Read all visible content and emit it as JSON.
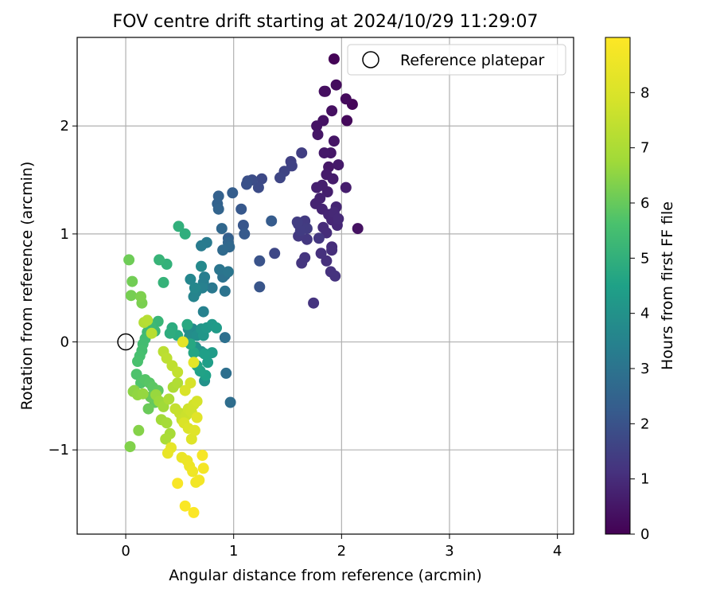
{
  "chart_data": {
    "type": "scatter",
    "title": "FOV centre drift starting at 2024/10/29 11:29:07",
    "xlabel": "Angular distance from reference (arcmin)",
    "ylabel": "Rotation from reference (arcmin)",
    "xlim": [
      -0.45,
      4.15
    ],
    "ylim": [
      -1.78,
      2.82
    ],
    "xticks": [
      0,
      1,
      2,
      3,
      4
    ],
    "xtick_labels": [
      "0",
      "1",
      "2",
      "3",
      "4"
    ],
    "yticks": [
      -1,
      0,
      1,
      2
    ],
    "ytick_labels": [
      "−1",
      "0",
      "1",
      "2"
    ],
    "grid": true,
    "legend": {
      "placement": "top-right",
      "entries": [
        "Reference platepar"
      ]
    },
    "colorbar": {
      "label": "Hours from first FF file",
      "colormap": "viridis",
      "range": [
        0,
        9
      ],
      "ticks": [
        0,
        1,
        2,
        3,
        4,
        5,
        6,
        7,
        8
      ],
      "tick_labels": [
        "0",
        "1",
        "2",
        "3",
        "4",
        "5",
        "6",
        "7",
        "8"
      ]
    },
    "reference_point": {
      "name": "Reference platepar",
      "x": 0,
      "y": 0
    },
    "series": [
      {
        "columns": [
          "x",
          "y",
          "hours"
        ],
        "points": [
          [
            1.93,
            2.62,
            0.05
          ],
          [
            2.1,
            2.2,
            0.1
          ],
          [
            2.05,
            2.05,
            0.15
          ],
          [
            2.04,
            2.25,
            0.2
          ],
          [
            1.95,
            2.38,
            0.25
          ],
          [
            1.85,
            2.32,
            0.3
          ],
          [
            1.84,
            2.32,
            0.32
          ],
          [
            1.91,
            2.14,
            0.35
          ],
          [
            2.15,
            1.05,
            0.38
          ],
          [
            1.83,
            2.05,
            0.4
          ],
          [
            1.77,
            2.0,
            0.42
          ],
          [
            1.93,
            1.86,
            0.45
          ],
          [
            1.78,
            1.92,
            0.48
          ],
          [
            1.9,
            1.75,
            0.5
          ],
          [
            1.88,
            1.62,
            0.52
          ],
          [
            1.84,
            1.75,
            0.55
          ],
          [
            1.97,
            1.64,
            0.58
          ],
          [
            1.86,
            1.55,
            0.6
          ],
          [
            1.92,
            1.51,
            0.62
          ],
          [
            2.04,
            1.43,
            0.65
          ],
          [
            1.87,
            1.39,
            0.68
          ],
          [
            1.82,
            1.45,
            0.7
          ],
          [
            1.77,
            1.43,
            0.72
          ],
          [
            1.8,
            1.33,
            0.75
          ],
          [
            1.76,
            1.28,
            0.78
          ],
          [
            1.82,
            1.23,
            0.8
          ],
          [
            1.95,
            1.25,
            0.82
          ],
          [
            1.88,
            1.18,
            0.85
          ],
          [
            1.91,
            1.13,
            0.88
          ],
          [
            1.96,
            1.08,
            0.9
          ],
          [
            1.93,
            1.2,
            0.92
          ],
          [
            1.97,
            1.14,
            0.95
          ],
          [
            1.83,
            1.06,
            0.98
          ],
          [
            1.86,
            1.01,
            1.0
          ],
          [
            1.91,
            0.88,
            1.02
          ],
          [
            1.91,
            0.85,
            1.05
          ],
          [
            1.86,
            0.75,
            1.08
          ],
          [
            1.81,
            0.82,
            1.1
          ],
          [
            1.9,
            0.65,
            1.12
          ],
          [
            1.94,
            0.61,
            1.15
          ],
          [
            1.74,
            0.36,
            1.18
          ],
          [
            1.66,
            0.78,
            1.2
          ],
          [
            1.63,
            0.73,
            1.22
          ],
          [
            1.79,
            0.96,
            1.25
          ],
          [
            1.68,
            0.95,
            1.28
          ],
          [
            1.6,
            0.98,
            1.3
          ],
          [
            1.6,
            1.09,
            1.32
          ],
          [
            1.66,
            1.12,
            1.35
          ],
          [
            1.68,
            1.05,
            1.38
          ],
          [
            1.62,
            1.03,
            1.4
          ],
          [
            1.59,
            1.11,
            1.42
          ],
          [
            1.63,
            1.75,
            1.45
          ],
          [
            1.53,
            1.67,
            1.5
          ],
          [
            1.54,
            1.63,
            1.55
          ],
          [
            1.47,
            1.58,
            1.6
          ],
          [
            1.43,
            1.52,
            1.65
          ],
          [
            1.38,
            0.82,
            1.7
          ],
          [
            1.26,
            1.51,
            1.75
          ],
          [
            1.23,
            1.43,
            1.8
          ],
          [
            1.17,
            1.5,
            1.85
          ],
          [
            1.13,
            1.49,
            1.9
          ],
          [
            1.12,
            1.46,
            1.95
          ],
          [
            1.24,
            0.75,
            2.0
          ],
          [
            1.24,
            0.51,
            2.05
          ],
          [
            1.09,
            1.08,
            2.1
          ],
          [
            1.07,
            1.23,
            2.15
          ],
          [
            1.1,
            1.0,
            2.2
          ],
          [
            1.35,
            1.12,
            2.25
          ],
          [
            0.99,
            1.38,
            2.3
          ],
          [
            0.95,
            0.96,
            2.35
          ],
          [
            0.86,
            1.35,
            2.4
          ],
          [
            0.85,
            1.28,
            2.45
          ],
          [
            0.86,
            1.23,
            2.5
          ],
          [
            0.95,
            0.92,
            2.55
          ],
          [
            0.89,
            1.05,
            2.6
          ],
          [
            0.96,
            0.88,
            2.65
          ],
          [
            0.9,
            0.85,
            2.7
          ],
          [
            0.92,
            0.62,
            2.75
          ],
          [
            0.97,
            -0.56,
            2.8
          ],
          [
            0.93,
            -0.29,
            2.85
          ],
          [
            0.92,
            0.04,
            2.9
          ],
          [
            0.9,
            0.6,
            2.95
          ],
          [
            0.92,
            0.47,
            3.0
          ],
          [
            0.87,
            0.67,
            3.05
          ],
          [
            0.95,
            0.65,
            3.1
          ],
          [
            0.8,
            0.5,
            3.15
          ],
          [
            0.75,
            0.92,
            3.2
          ],
          [
            0.7,
            0.89,
            3.25
          ],
          [
            0.72,
            0.55,
            3.3
          ],
          [
            0.73,
            0.6,
            3.35
          ],
          [
            0.71,
            0.5,
            3.4
          ],
          [
            0.72,
            0.28,
            3.45
          ],
          [
            0.65,
            0.46,
            3.5
          ],
          [
            0.63,
            0.42,
            3.55
          ],
          [
            0.6,
            0.58,
            3.6
          ],
          [
            0.64,
            0.5,
            3.65
          ],
          [
            0.7,
            0.7,
            3.7
          ],
          [
            0.62,
            0.12,
            3.75
          ],
          [
            0.58,
            0.12,
            3.8
          ],
          [
            0.59,
            0.05,
            3.85
          ],
          [
            0.66,
            0.06,
            3.9
          ],
          [
            0.7,
            -0.09,
            3.95
          ],
          [
            0.73,
            -0.36,
            4.0
          ],
          [
            0.65,
            -0.05,
            4.05
          ],
          [
            0.7,
            0.12,
            4.1
          ],
          [
            0.72,
            0.06,
            4.15
          ],
          [
            0.75,
            0.13,
            4.2
          ],
          [
            0.8,
            0.16,
            4.25
          ],
          [
            0.84,
            0.13,
            4.3
          ],
          [
            0.8,
            -0.1,
            4.35
          ],
          [
            0.76,
            -0.19,
            4.4
          ],
          [
            0.73,
            -0.11,
            4.45
          ],
          [
            0.74,
            -0.31,
            4.5
          ],
          [
            0.69,
            -0.27,
            4.55
          ],
          [
            0.66,
            -0.22,
            4.6
          ],
          [
            0.63,
            -0.1,
            4.65
          ],
          [
            0.6,
            -0.02,
            4.7
          ],
          [
            0.57,
            0.16,
            4.75
          ],
          [
            0.48,
            0.06,
            4.8
          ],
          [
            0.43,
            0.13,
            4.85
          ],
          [
            0.41,
            0.08,
            4.9
          ],
          [
            0.55,
            1.0,
            4.95
          ],
          [
            0.49,
            1.07,
            5.0
          ],
          [
            0.38,
            0.72,
            5.05
          ],
          [
            0.35,
            0.55,
            5.1
          ],
          [
            0.31,
            0.76,
            5.15
          ],
          [
            0.3,
            0.19,
            5.2
          ],
          [
            0.27,
            0.1,
            5.25
          ],
          [
            0.23,
            0.15,
            5.3
          ],
          [
            0.2,
            0.09,
            5.35
          ],
          [
            0.18,
            0.03,
            5.4
          ],
          [
            0.16,
            -0.02,
            5.45
          ],
          [
            0.15,
            -0.08,
            5.5
          ],
          [
            0.13,
            -0.13,
            5.55
          ],
          [
            0.11,
            -0.18,
            5.6
          ],
          [
            0.1,
            -0.3,
            5.65
          ],
          [
            0.14,
            -0.38,
            5.7
          ],
          [
            0.18,
            -0.35,
            5.75
          ],
          [
            0.22,
            -0.38,
            5.8
          ],
          [
            0.25,
            -0.42,
            5.85
          ],
          [
            0.3,
            -0.45,
            5.9
          ],
          [
            0.27,
            -0.56,
            5.95
          ],
          [
            0.23,
            -0.51,
            6.0
          ],
          [
            0.21,
            -0.62,
            6.05
          ],
          [
            0.03,
            0.76,
            6.1
          ],
          [
            0.06,
            0.56,
            6.15
          ],
          [
            0.05,
            0.43,
            6.2
          ],
          [
            0.15,
            0.36,
            6.25
          ],
          [
            0.14,
            0.42,
            6.3
          ],
          [
            0.04,
            -0.97,
            6.35
          ],
          [
            0.12,
            -0.82,
            6.4
          ],
          [
            0.08,
            -0.45,
            6.45
          ],
          [
            0.07,
            -0.46,
            6.5
          ],
          [
            0.11,
            -0.49,
            6.55
          ],
          [
            0.16,
            -0.48,
            6.6
          ],
          [
            0.28,
            -0.49,
            6.65
          ],
          [
            0.31,
            -0.55,
            6.7
          ],
          [
            0.35,
            -0.6,
            6.75
          ],
          [
            0.33,
            -0.72,
            6.8
          ],
          [
            0.38,
            -0.75,
            6.85
          ],
          [
            0.41,
            -0.85,
            6.9
          ],
          [
            0.37,
            -0.9,
            6.95
          ],
          [
            0.4,
            -0.53,
            7.0
          ],
          [
            0.44,
            -0.42,
            7.05
          ],
          [
            0.48,
            -0.38,
            7.1
          ],
          [
            0.17,
            0.18,
            7.15
          ],
          [
            0.2,
            0.2,
            7.2
          ],
          [
            0.24,
            0.08,
            7.25
          ],
          [
            0.35,
            -0.09,
            7.3
          ],
          [
            0.38,
            -0.15,
            7.35
          ],
          [
            0.43,
            -0.22,
            7.4
          ],
          [
            0.48,
            -0.28,
            7.45
          ],
          [
            0.46,
            -0.62,
            7.5
          ],
          [
            0.5,
            -0.66,
            7.55
          ],
          [
            0.52,
            -0.72,
            7.6
          ],
          [
            0.56,
            -0.68,
            7.65
          ],
          [
            0.58,
            -0.62,
            7.7
          ],
          [
            0.61,
            -0.65,
            7.75
          ],
          [
            0.63,
            -0.58,
            7.8
          ],
          [
            0.66,
            -0.55,
            7.85
          ],
          [
            0.6,
            -0.38,
            7.9
          ],
          [
            0.55,
            -0.45,
            7.95
          ],
          [
            0.54,
            -0.75,
            8.0
          ],
          [
            0.58,
            -0.8,
            8.05
          ],
          [
            0.61,
            -0.9,
            8.1
          ],
          [
            0.64,
            -0.82,
            8.15
          ],
          [
            0.66,
            -0.7,
            8.2
          ],
          [
            0.53,
            0.0,
            8.25
          ],
          [
            0.63,
            -0.19,
            8.3
          ],
          [
            0.42,
            -0.98,
            8.35
          ],
          [
            0.39,
            -1.03,
            8.4
          ],
          [
            0.52,
            -1.07,
            8.45
          ],
          [
            0.57,
            -1.1,
            8.5
          ],
          [
            0.59,
            -1.15,
            8.55
          ],
          [
            0.62,
            -1.2,
            8.6
          ],
          [
            0.65,
            -1.3,
            8.65
          ],
          [
            0.68,
            -1.28,
            8.7
          ],
          [
            0.72,
            -1.17,
            8.75
          ],
          [
            0.71,
            -1.05,
            8.8
          ],
          [
            0.48,
            -1.31,
            8.85
          ],
          [
            0.55,
            -1.52,
            8.9
          ],
          [
            0.63,
            -1.58,
            8.95
          ]
        ]
      }
    ]
  }
}
